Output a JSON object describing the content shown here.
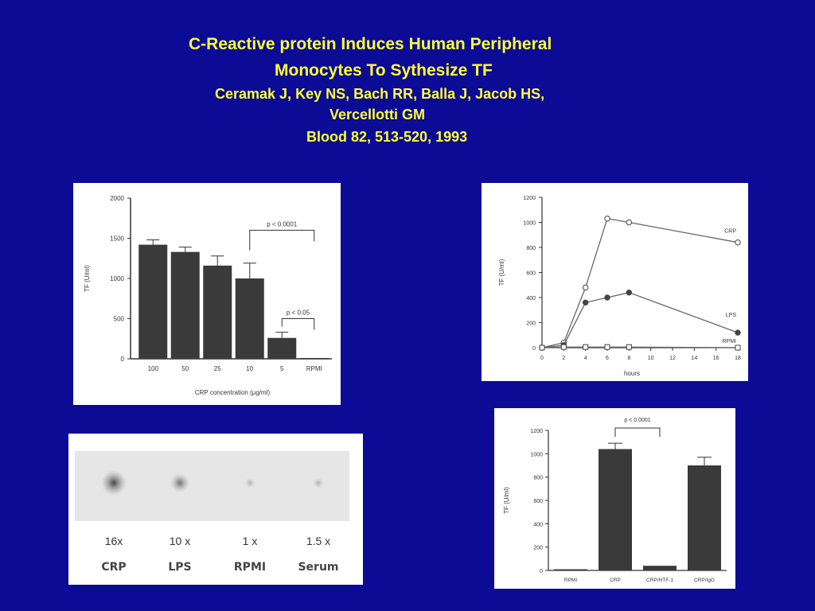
{
  "slide": {
    "title_line1": "C-Reactive protein Induces Human Peripheral",
    "title_line2": "Monocytes To Sythesize TF",
    "authors_line1": "Ceramak J, Key NS, Bach RR, Balla J, Jacob HS,",
    "authors_line2": "Vercellotti GM",
    "citation": "Blood 82, 513-520, 1993",
    "background_color": "#0b0b96",
    "text_color": "#ffff33"
  },
  "chart_data": [
    {
      "type": "bar",
      "categories": [
        "100",
        "50",
        "25",
        "10",
        "5",
        "RPMI"
      ],
      "values": [
        1420,
        1330,
        1160,
        1000,
        260,
        10
      ],
      "errors": [
        60,
        60,
        120,
        190,
        70,
        0
      ],
      "xlabel": "CRP   concentration   (μg/ml)",
      "ylabel": "TF   (U/ml)",
      "ylim": [
        0,
        2000
      ],
      "yticks": [
        "0",
        "500",
        "1000",
        "1500",
        "2000"
      ],
      "annotations": [
        {
          "text": "p < 0.0001",
          "from": "10",
          "to": "RPMI"
        },
        {
          "text": "p < 0.05",
          "from": "5",
          "to": "RPMI"
        }
      ]
    },
    {
      "type": "line",
      "x": [
        0,
        2,
        4,
        6,
        8,
        18
      ],
      "series": [
        {
          "name": "CRP",
          "values": [
            0,
            40,
            480,
            1030,
            1000,
            840
          ],
          "marker": "open-circle"
        },
        {
          "name": "LPS",
          "values": [
            0,
            20,
            360,
            400,
            440,
            120
          ],
          "marker": "filled-circle"
        },
        {
          "name": "RPMI",
          "values": [
            0,
            5,
            5,
            5,
            5,
            0
          ],
          "marker": "open-square"
        }
      ],
      "xlabel": "hours",
      "ylabel": "TF   (U/ml)",
      "xlim": [
        0,
        18
      ],
      "ylim": [
        0,
        1200
      ],
      "xticks": [
        "0",
        "2",
        "4",
        "6",
        "8",
        "10",
        "12",
        "14",
        "16",
        "18"
      ],
      "yticks": [
        "0",
        "200",
        "400",
        "600",
        "800",
        "1000",
        "1200"
      ]
    },
    {
      "type": "bar",
      "categories": [
        "RPMI",
        "CRP",
        "CRP/HTF-1",
        "CRP/IgG"
      ],
      "values": [
        10,
        1040,
        40,
        900
      ],
      "errors": [
        0,
        50,
        0,
        70
      ],
      "ylabel": "TF   (U/ml)",
      "ylim": [
        0,
        1200
      ],
      "yticks": [
        "0",
        "200",
        "400",
        "600",
        "800",
        "1000",
        "1200"
      ],
      "annotations": [
        {
          "text": "p < 0.0001",
          "from": "CRP",
          "to": "CRP/HTF-1"
        }
      ]
    }
  ],
  "blot": {
    "lanes": [
      {
        "fold": "16x",
        "label": "CRP",
        "intensity": 16
      },
      {
        "fold": "10 x",
        "label": "LPS",
        "intensity": 10
      },
      {
        "fold": "1 x",
        "label": "RPMI",
        "intensity": 1
      },
      {
        "fold": "1.5 x",
        "label": "Serum",
        "intensity": 1.5
      }
    ]
  }
}
